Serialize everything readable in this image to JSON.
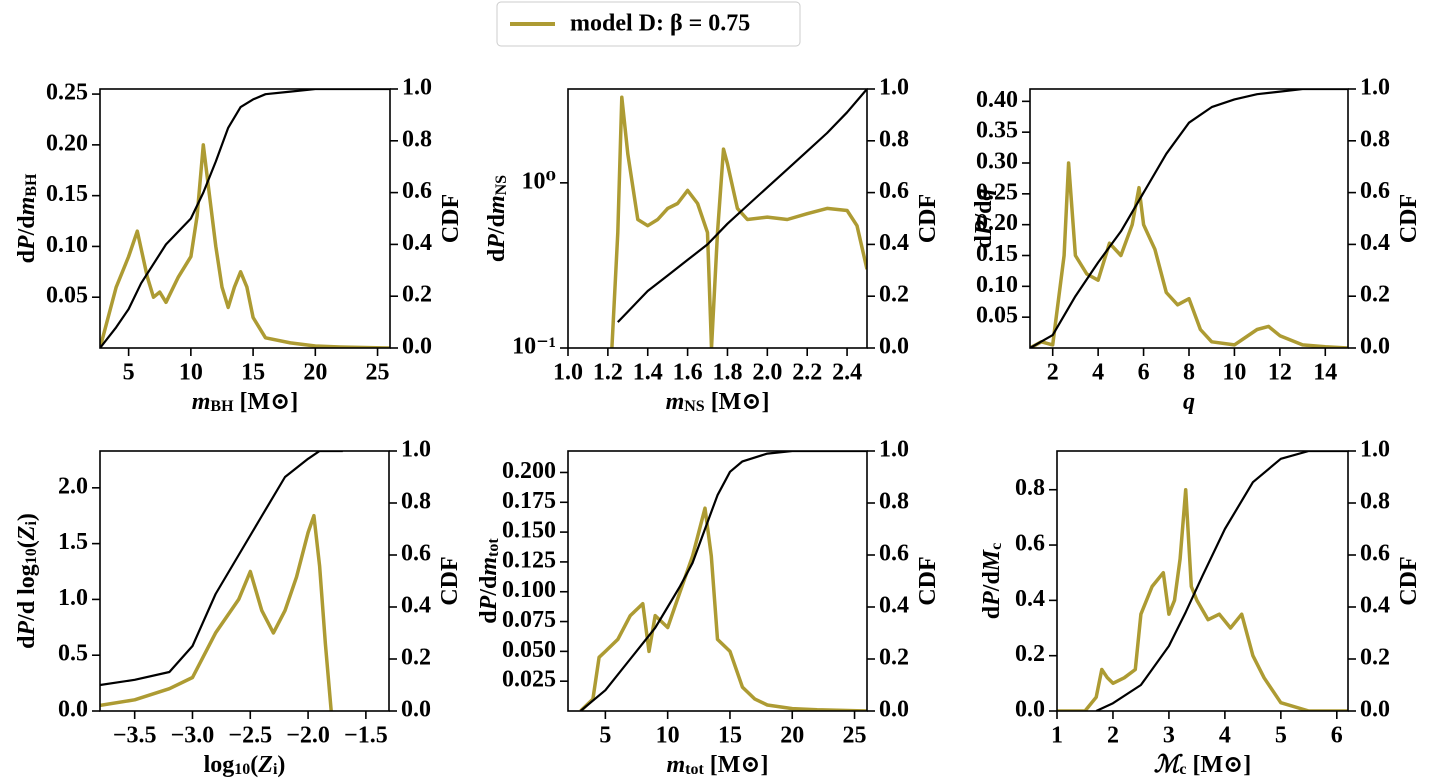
{
  "legend": {
    "label": "model D: β = 0.75",
    "color": "#ad9b33"
  },
  "chart_data": [
    {
      "type": "line",
      "xlabel": [
        {
          "it": "m"
        },
        {
          "sub": "BH"
        },
        "  [M⊙]"
      ],
      "ylabel": [
        "d",
        {
          "it": "P"
        },
        "/d",
        {
          "it": "m"
        },
        {
          "sub": "BH"
        }
      ],
      "y2label": [
        "CDF"
      ],
      "xlim": [
        2.7,
        26
      ],
      "xticks": [
        5,
        10,
        15,
        20,
        25
      ],
      "ylim": [
        0,
        0.255
      ],
      "yticks": [
        0.05,
        {
          "value": 0.1,
          "label": "0.10"
        },
        0.15,
        {
          "value": 0.2,
          "label": "0.20"
        },
        0.25
      ],
      "y2lim": [
        0,
        1
      ],
      "y2ticks": [
        {
          "value": 0,
          "label": "0.0"
        },
        0.2,
        0.4,
        0.6,
        0.8,
        {
          "value": 1,
          "label": "1.0"
        }
      ],
      "series": [
        {
          "color": "#ad9b33",
          "x": [
            2.7,
            4,
            5,
            5.7,
            6.5,
            7,
            7.5,
            8,
            9,
            10,
            10.5,
            11,
            11.5,
            12,
            12.5,
            13,
            13.5,
            14,
            14.5,
            15,
            16,
            18,
            20,
            22,
            26
          ],
          "values": [
            0,
            0.06,
            0.09,
            0.115,
            0.07,
            0.05,
            0.055,
            0.045,
            0.07,
            0.09,
            0.13,
            0.2,
            0.15,
            0.1,
            0.06,
            0.04,
            0.06,
            0.075,
            0.06,
            0.03,
            0.01,
            0.005,
            0.002,
            0.001,
            0
          ]
        },
        {
          "color": "#000000",
          "axis": "y2",
          "x": [
            2.7,
            4,
            5,
            6,
            8,
            10,
            11,
            12,
            13,
            14,
            15,
            16,
            18,
            20,
            26
          ],
          "values": [
            0,
            0.08,
            0.15,
            0.25,
            0.4,
            0.5,
            0.6,
            0.72,
            0.85,
            0.93,
            0.96,
            0.98,
            0.99,
            1,
            1
          ]
        }
      ]
    },
    {
      "type": "line",
      "xlabel": [
        {
          "it": "m"
        },
        {
          "sub": "NS"
        },
        "  [M⊙]"
      ],
      "ylabel": [
        "d",
        {
          "it": "P"
        },
        "/d",
        {
          "it": "m"
        },
        {
          "sub": "NS"
        }
      ],
      "y2label": [
        "CDF"
      ],
      "xlim": [
        1.0,
        2.5
      ],
      "xticks": [
        {
          "value": 1,
          "label": "1.0"
        },
        1.2,
        1.4,
        1.6,
        1.8,
        {
          "value": 2,
          "label": "2.0"
        },
        2.2,
        2.4
      ],
      "ylim": [
        0.1,
        3.7
      ],
      "ylog": true,
      "yticks": [
        {
          "value": 0.1,
          "label": "10⁻¹"
        },
        {
          "value": 1,
          "label": "10⁰"
        }
      ],
      "y2lim": [
        0,
        1
      ],
      "y2ticks": [
        {
          "value": 0,
          "label": "0.0"
        },
        0.2,
        0.4,
        0.6,
        0.8,
        {
          "value": 1,
          "label": "1.0"
        }
      ],
      "series": [
        {
          "color": "#ad9b33",
          "x": [
            1.22,
            1.25,
            1.27,
            1.3,
            1.35,
            1.4,
            1.45,
            1.5,
            1.55,
            1.6,
            1.65,
            1.7,
            1.72,
            1.75,
            1.78,
            1.8,
            1.85,
            1.9,
            2.0,
            2.1,
            2.2,
            2.3,
            2.4,
            2.45,
            2.5
          ],
          "values": [
            0.1,
            0.5,
            3.3,
            1.5,
            0.6,
            0.55,
            0.6,
            0.7,
            0.75,
            0.9,
            0.75,
            0.5,
            0.1,
            0.5,
            1.6,
            1.3,
            0.7,
            0.6,
            0.62,
            0.6,
            0.65,
            0.7,
            0.68,
            0.55,
            0.3
          ]
        },
        {
          "color": "#000000",
          "axis": "y2",
          "x": [
            1.25,
            1.3,
            1.4,
            1.5,
            1.6,
            1.7,
            1.8,
            1.9,
            2.0,
            2.1,
            2.2,
            2.3,
            2.4,
            2.5
          ],
          "values": [
            0.1,
            0.14,
            0.22,
            0.28,
            0.34,
            0.4,
            0.48,
            0.55,
            0.62,
            0.69,
            0.76,
            0.83,
            0.91,
            1
          ]
        }
      ]
    },
    {
      "type": "line",
      "xlabel": [
        {
          "it": "q"
        }
      ],
      "ylabel": [
        "d",
        {
          "it": "P"
        },
        "/d",
        {
          "it": "q"
        }
      ],
      "y2label": [
        "CDF"
      ],
      "xlim": [
        1,
        15
      ],
      "xticks": [
        2,
        4,
        6,
        8,
        10,
        12,
        14
      ],
      "ylim": [
        0,
        0.42
      ],
      "yticks": [
        0.05,
        {
          "value": 0.1,
          "label": "0.10"
        },
        0.15,
        {
          "value": 0.2,
          "label": "0.20"
        },
        0.25,
        {
          "value": 0.3,
          "label": "0.30"
        },
        0.35,
        {
          "value": 0.4,
          "label": "0.40"
        }
      ],
      "y2lim": [
        0,
        1
      ],
      "y2ticks": [
        {
          "value": 0,
          "label": "0.0"
        },
        0.2,
        0.4,
        0.6,
        0.8,
        {
          "value": 1,
          "label": "1.0"
        }
      ],
      "series": [
        {
          "color": "#ad9b33",
          "x": [
            1,
            1.5,
            2,
            2.5,
            2.7,
            3,
            3.5,
            4,
            4.5,
            5,
            5.5,
            5.8,
            6,
            6.5,
            7,
            7.5,
            8,
            8.5,
            9,
            10,
            11,
            11.5,
            12,
            13,
            14,
            15
          ],
          "values": [
            0,
            0.01,
            0.005,
            0.15,
            0.3,
            0.15,
            0.12,
            0.11,
            0.17,
            0.15,
            0.2,
            0.26,
            0.2,
            0.16,
            0.09,
            0.07,
            0.08,
            0.03,
            0.01,
            0.005,
            0.03,
            0.035,
            0.02,
            0.005,
            0.002,
            0
          ]
        },
        {
          "color": "#000000",
          "axis": "y2",
          "x": [
            1,
            2,
            3,
            4,
            5,
            6,
            7,
            8,
            9,
            10,
            11,
            12,
            13,
            15
          ],
          "values": [
            0,
            0.05,
            0.2,
            0.33,
            0.45,
            0.6,
            0.75,
            0.87,
            0.93,
            0.96,
            0.98,
            0.99,
            1,
            1
          ]
        }
      ]
    },
    {
      "type": "line",
      "xlabel": [
        "log",
        {
          "sub": "10"
        },
        "(",
        {
          "it": "Z"
        },
        {
          "sub": "i"
        },
        ")"
      ],
      "ylabel": [
        "d",
        {
          "it": "P"
        },
        "/d log",
        {
          "sub": "10"
        },
        "(",
        {
          "it": "Z"
        },
        {
          "sub": "i"
        },
        ")"
      ],
      "y2label": [
        "CDF"
      ],
      "xlim": [
        -3.8,
        -1.3
      ],
      "xticks": [
        {
          "value": -3.5,
          "label": "−3.5"
        },
        {
          "value": -3,
          "label": "−3.0"
        },
        {
          "value": -2.5,
          "label": "−2.5"
        },
        {
          "value": -2,
          "label": "−2.0"
        },
        {
          "value": -1.5,
          "label": "−1.5"
        }
      ],
      "ylim": [
        0,
        2.33
      ],
      "yticks": [
        {
          "value": 0,
          "label": "0.0"
        },
        0.5,
        {
          "value": 1,
          "label": "1.0"
        },
        1.5,
        {
          "value": 2,
          "label": "2.0"
        }
      ],
      "y2lim": [
        0,
        1
      ],
      "y2ticks": [
        {
          "value": 0,
          "label": "0.0"
        },
        0.2,
        0.4,
        0.6,
        0.8,
        {
          "value": 1,
          "label": "1.0"
        }
      ],
      "series": [
        {
          "color": "#ad9b33",
          "x": [
            -3.8,
            -3.5,
            -3.2,
            -3.0,
            -2.8,
            -2.6,
            -2.5,
            -2.4,
            -2.3,
            -2.2,
            -2.1,
            -2.0,
            -1.95,
            -1.9,
            -1.85,
            -1.8
          ],
          "values": [
            0.05,
            0.1,
            0.2,
            0.3,
            0.7,
            1.0,
            1.25,
            0.9,
            0.7,
            0.9,
            1.2,
            1.6,
            1.75,
            1.3,
            0.6,
            0
          ]
        },
        {
          "color": "#000000",
          "axis": "y2",
          "x": [
            -3.8,
            -3.5,
            -3.2,
            -3.0,
            -2.8,
            -2.6,
            -2.4,
            -2.2,
            -2.0,
            -1.9,
            -1.8,
            -1.7
          ],
          "values": [
            0.1,
            0.12,
            0.15,
            0.25,
            0.45,
            0.6,
            0.75,
            0.9,
            0.97,
            1,
            1,
            1
          ]
        }
      ]
    },
    {
      "type": "line",
      "xlabel": [
        {
          "it": "m"
        },
        {
          "sub": "tot"
        },
        "  [M⊙]"
      ],
      "ylabel": [
        "d",
        {
          "it": "P"
        },
        "/d",
        {
          "it": "m"
        },
        {
          "sub": "tot"
        }
      ],
      "y2label": [
        "CDF"
      ],
      "xlim": [
        2,
        26
      ],
      "xticks": [
        5,
        10,
        15,
        20,
        25
      ],
      "ylim": [
        0,
        0.218
      ],
      "yticks": [
        0.025,
        {
          "value": 0.05,
          "label": "0.050"
        },
        0.075,
        {
          "value": 0.1,
          "label": "0.100"
        },
        0.125,
        {
          "value": 0.15,
          "label": "0.150"
        },
        0.175,
        {
          "value": 0.2,
          "label": "0.200"
        }
      ],
      "y2lim": [
        0,
        1
      ],
      "y2ticks": [
        {
          "value": 0,
          "label": "0.0"
        },
        0.2,
        0.4,
        0.6,
        0.8,
        {
          "value": 1,
          "label": "1.0"
        }
      ],
      "series": [
        {
          "color": "#ad9b33",
          "x": [
            3,
            4,
            4.5,
            5,
            6,
            7,
            8,
            8.5,
            9,
            10,
            11,
            12,
            13,
            13.5,
            14,
            15,
            16,
            17,
            18,
            20,
            22,
            26
          ],
          "values": [
            0,
            0.01,
            0.045,
            0.05,
            0.06,
            0.08,
            0.09,
            0.05,
            0.08,
            0.07,
            0.1,
            0.13,
            0.17,
            0.13,
            0.06,
            0.05,
            0.02,
            0.01,
            0.005,
            0.002,
            0.001,
            0
          ]
        },
        {
          "color": "#000000",
          "axis": "y2",
          "x": [
            3,
            5,
            7,
            9,
            10,
            11,
            12,
            13,
            14,
            15,
            16,
            18,
            20,
            26
          ],
          "values": [
            0,
            0.08,
            0.2,
            0.32,
            0.4,
            0.48,
            0.57,
            0.7,
            0.83,
            0.92,
            0.96,
            0.99,
            1,
            1
          ]
        }
      ]
    },
    {
      "type": "line",
      "xlabel": [
        {
          "it": "ℳ"
        },
        {
          "sub": "c"
        },
        "  [M⊙]"
      ],
      "ylabel": [
        "d",
        {
          "it": "P"
        },
        "/d",
        {
          "it": "M"
        },
        {
          "sub": "c"
        }
      ],
      "y2label": [
        "CDF"
      ],
      "xlim": [
        1,
        6.2
      ],
      "xticks": [
        1,
        2,
        3,
        4,
        5,
        6
      ],
      "ylim": [
        0,
        0.94
      ],
      "yticks": [
        {
          "value": 0,
          "label": "0.0"
        },
        0.2,
        0.4,
        0.6,
        0.8
      ],
      "y2lim": [
        0,
        1
      ],
      "y2ticks": [
        {
          "value": 0,
          "label": "0.0"
        },
        0.2,
        0.4,
        0.6,
        0.8,
        {
          "value": 1,
          "label": "1.0"
        }
      ],
      "series": [
        {
          "color": "#ad9b33",
          "x": [
            1,
            1.5,
            1.7,
            1.8,
            1.9,
            2.0,
            2.2,
            2.4,
            2.5,
            2.7,
            2.9,
            3.0,
            3.1,
            3.2,
            3.3,
            3.4,
            3.5,
            3.7,
            3.9,
            4.1,
            4.3,
            4.5,
            4.7,
            5,
            5.5,
            6.2
          ],
          "values": [
            0,
            0,
            0.05,
            0.15,
            0.12,
            0.1,
            0.12,
            0.15,
            0.35,
            0.45,
            0.5,
            0.35,
            0.4,
            0.55,
            0.8,
            0.45,
            0.4,
            0.33,
            0.35,
            0.3,
            0.35,
            0.2,
            0.12,
            0.03,
            0,
            0
          ]
        },
        {
          "color": "#000000",
          "axis": "y2",
          "x": [
            1.7,
            2,
            2.5,
            3,
            3.3,
            3.6,
            4,
            4.5,
            5,
            5.5,
            6.2
          ],
          "values": [
            0,
            0.03,
            0.1,
            0.25,
            0.38,
            0.52,
            0.7,
            0.88,
            0.97,
            1,
            1
          ]
        }
      ]
    }
  ]
}
